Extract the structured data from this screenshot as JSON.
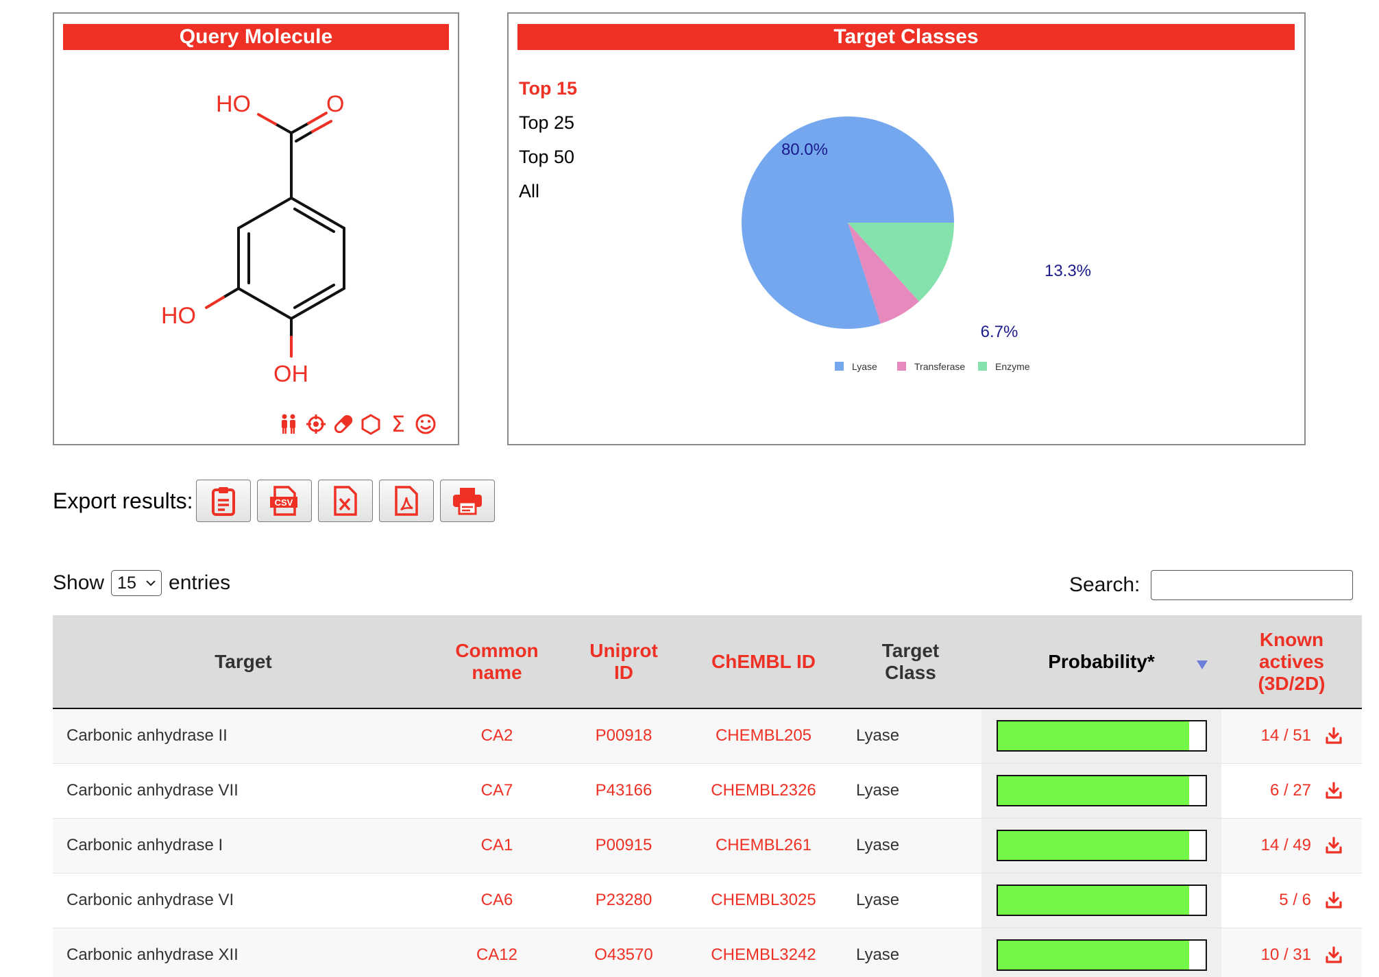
{
  "query_panel": {
    "title": "Query Molecule",
    "atoms": {
      "carboxyl_oh": "HO",
      "carbonyl_o": "O",
      "ring_oh_left": "HO",
      "ring_oh_bottom": "OH"
    },
    "icons": [
      "people-icon",
      "target-icon",
      "pill-icon",
      "hexagon-icon",
      "sigma-icon",
      "smiley-icon"
    ],
    "icon_glyphs": {
      "sigma": "Σ",
      "smiley": "☺"
    }
  },
  "target_panel": {
    "title": "Target Classes",
    "menu": [
      {
        "label": "Top 15",
        "active": true
      },
      {
        "label": "Top 25",
        "active": false
      },
      {
        "label": "Top 50",
        "active": false
      },
      {
        "label": "All",
        "active": false
      }
    ]
  },
  "chart_data": {
    "type": "pie",
    "slices": [
      {
        "label": "Lyase",
        "value": 80.0,
        "display": "80.0%",
        "color": "#74a7ee"
      },
      {
        "label": "Transferase",
        "value": 6.7,
        "display": "6.7%",
        "color": "#e689bd"
      },
      {
        "label": "Enzyme",
        "value": 13.3,
        "display": "13.3%",
        "color": "#86e2ad"
      }
    ],
    "legend_position": "bottom",
    "label_color": "#1a1a8c"
  },
  "export": {
    "label": "Export results:",
    "buttons": [
      "clipboard-icon",
      "csv-icon",
      "excel-icon",
      "pdf-icon",
      "print-icon"
    ],
    "csv_text": "CSV"
  },
  "table_controls": {
    "show_label": "Show",
    "entries_value": "15",
    "entries_label": "entries",
    "search_label": "Search:",
    "search_value": ""
  },
  "table": {
    "headers": {
      "target": "Target",
      "common_1": "Common",
      "common_2": "name",
      "uniprot_1": "Uniprot",
      "uniprot_2": "ID",
      "chembl": "ChEMBL ID",
      "class_1": "Target",
      "class_2": "Class",
      "probability": "Probability*",
      "known_1": "Known",
      "known_2": "actives",
      "known_3": "(3D/2D)"
    },
    "rows": [
      {
        "target": "Carbonic anhydrase II",
        "common": "CA2",
        "uniprot": "P00918",
        "chembl": "CHEMBL205",
        "class": "Lyase",
        "probability": 0.92,
        "known": "14 / 51"
      },
      {
        "target": "Carbonic anhydrase VII",
        "common": "CA7",
        "uniprot": "P43166",
        "chembl": "CHEMBL2326",
        "class": "Lyase",
        "probability": 0.92,
        "known": "6 / 27"
      },
      {
        "target": "Carbonic anhydrase I",
        "common": "CA1",
        "uniprot": "P00915",
        "chembl": "CHEMBL261",
        "class": "Lyase",
        "probability": 0.92,
        "known": "14 / 49"
      },
      {
        "target": "Carbonic anhydrase VI",
        "common": "CA6",
        "uniprot": "P23280",
        "chembl": "CHEMBL3025",
        "class": "Lyase",
        "probability": 0.92,
        "known": "5 / 6"
      },
      {
        "target": "Carbonic anhydrase XII",
        "common": "CA12",
        "uniprot": "O43570",
        "chembl": "CHEMBL3242",
        "class": "Lyase",
        "probability": 0.92,
        "known": "10 / 31"
      }
    ]
  }
}
